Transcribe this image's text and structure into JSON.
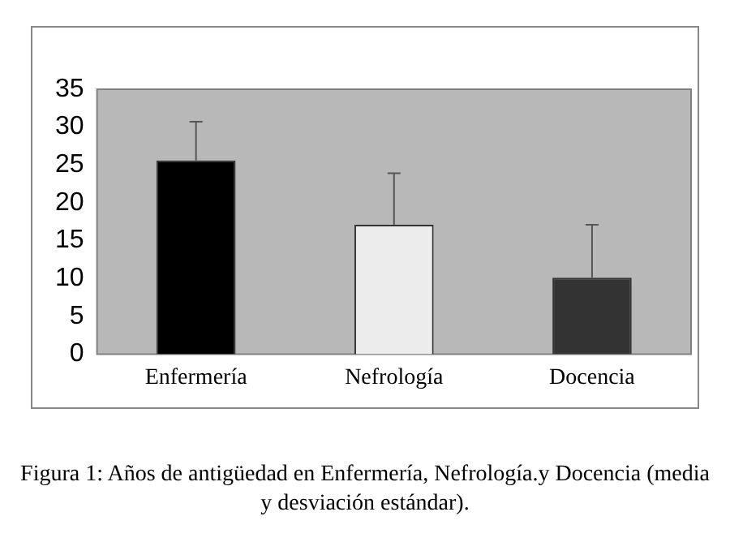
{
  "chart_data": {
    "type": "bar",
    "categories": [
      "Enfermería",
      "Nefrología",
      "Docencia"
    ],
    "values": [
      25.6,
      17.1,
      10.1
    ],
    "colors": [
      "#000000",
      "#ececec",
      "#333333"
    ],
    "errors": [
      [
        25.6,
        30.7
      ],
      [
        17.1,
        23.9
      ],
      [
        10.1,
        17.1
      ]
    ],
    "ylim": [
      0,
      35
    ],
    "yticks": [
      0,
      5,
      10,
      15,
      20,
      25,
      30,
      35
    ],
    "grid": false,
    "legend": false,
    "annotations": [
      "Figura 1: Años de antigüedad en Enfermería, Nefrología.y Docencia (media y desviación estándar)."
    ]
  }
}
